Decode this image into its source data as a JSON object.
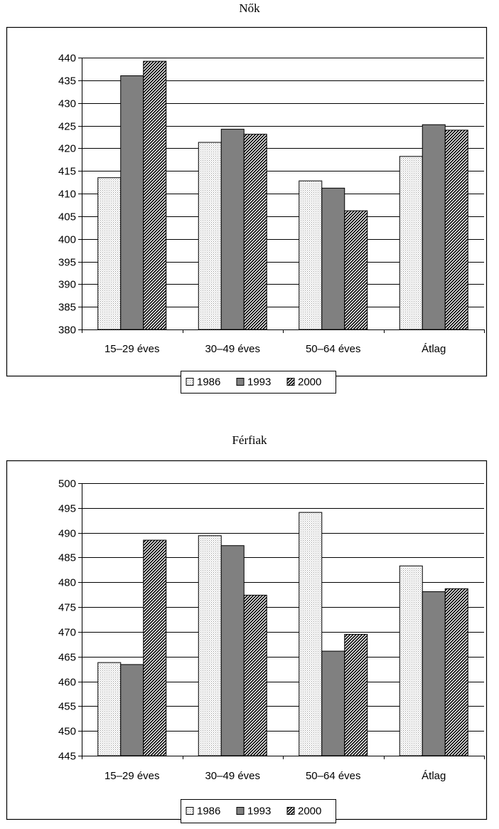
{
  "chart_data": [
    {
      "type": "bar",
      "title": "Nők",
      "categories": [
        "15–29 éves",
        "30–49 éves",
        "50–64 éves",
        "Átlag"
      ],
      "series": [
        {
          "name": "1986",
          "values": [
            413.5,
            421.3,
            412.8,
            418.2
          ]
        },
        {
          "name": "1993",
          "values": [
            436.0,
            424.2,
            411.2,
            425.2
          ]
        },
        {
          "name": "2000",
          "values": [
            439.2,
            423.1,
            406.2,
            424.0
          ]
        }
      ],
      "yticks": [
        "380",
        "385",
        "390",
        "395",
        "400",
        "405",
        "410",
        "415",
        "420",
        "425",
        "430",
        "435",
        "440"
      ],
      "ylim": [
        380,
        440
      ],
      "xlabel": "",
      "ylabel": "",
      "grid": true,
      "legend_position": "bottom"
    },
    {
      "type": "bar",
      "title": "Férfiak",
      "categories": [
        "15–29 éves",
        "30–49 éves",
        "50–64 éves",
        "Átlag"
      ],
      "series": [
        {
          "name": "1986",
          "values": [
            463.8,
            489.4,
            494.1,
            483.3
          ]
        },
        {
          "name": "1993",
          "values": [
            463.4,
            487.4,
            466.1,
            478.1
          ]
        },
        {
          "name": "2000",
          "values": [
            488.5,
            477.4,
            469.5,
            478.7
          ]
        }
      ],
      "yticks": [
        "445",
        "450",
        "455",
        "460",
        "465",
        "470",
        "475",
        "480",
        "485",
        "490",
        "495",
        "500"
      ],
      "ylim": [
        445,
        500
      ],
      "xlabel": "",
      "ylabel": "",
      "grid": true,
      "legend_position": "bottom"
    }
  ],
  "colors": {
    "series_1986": "#f2f2f2",
    "series_1993": "#808080",
    "series_2000_hatch": "#ffffff",
    "gridline": "#000000"
  }
}
